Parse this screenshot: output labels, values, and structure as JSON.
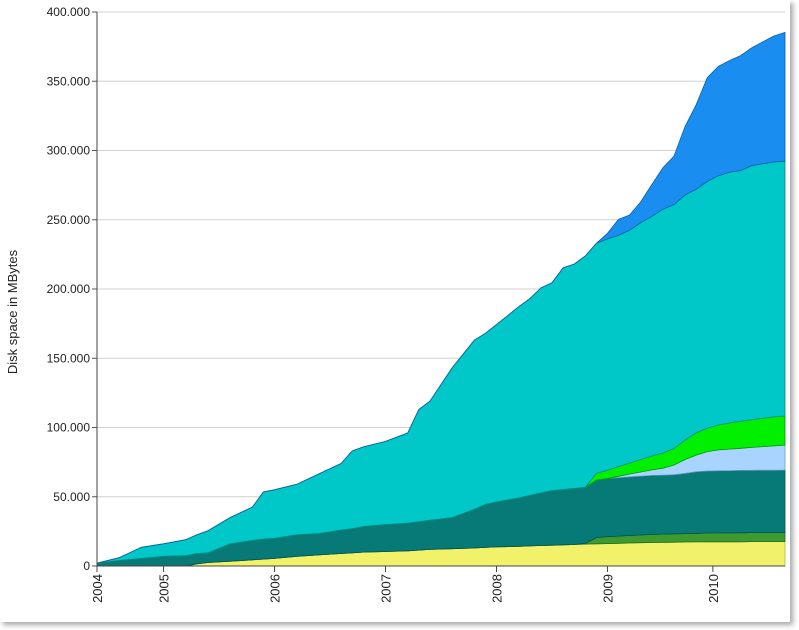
{
  "chart_data": {
    "type": "area",
    "stacked": true,
    "title": "",
    "ylabel": "Disk space in MBytes",
    "xlabel": "",
    "xlim": [
      2004.0,
      2010.2
    ],
    "ylim": [
      0,
      400000
    ],
    "grid": "horizontal",
    "y_ticks": [
      {
        "value": 0,
        "label": "0"
      },
      {
        "value": 50000,
        "label": "50.000"
      },
      {
        "value": 100000,
        "label": "100.000"
      },
      {
        "value": 150000,
        "label": "150.000"
      },
      {
        "value": 200000,
        "label": "200.000"
      },
      {
        "value": 250000,
        "label": "250.000"
      },
      {
        "value": 300000,
        "label": "300.000"
      },
      {
        "value": 350000,
        "label": "350.000"
      },
      {
        "value": 400000,
        "label": "400.000"
      }
    ],
    "x_ticks": [
      {
        "value": 2004.0,
        "label": "2004"
      },
      {
        "value": 2004.6,
        "label": "2005"
      },
      {
        "value": 2005.6,
        "label": "2006"
      },
      {
        "value": 2006.6,
        "label": "2007"
      },
      {
        "value": 2007.6,
        "label": "2008"
      },
      {
        "value": 2008.6,
        "label": "2009"
      },
      {
        "value": 2009.55,
        "label": "2010"
      }
    ],
    "x": [
      2004.0,
      2004.2,
      2004.4,
      2004.6,
      2004.8,
      2004.9,
      2005.0,
      2005.2,
      2005.4,
      2005.5,
      2005.6,
      2005.8,
      2006.0,
      2006.2,
      2006.3,
      2006.4,
      2006.6,
      2006.8,
      2006.9,
      2007.0,
      2007.2,
      2007.4,
      2007.5,
      2007.6,
      2007.8,
      2007.9,
      2008.0,
      2008.1,
      2008.2,
      2008.3,
      2008.4,
      2008.5,
      2008.6,
      2008.7,
      2008.8,
      2008.9,
      2009.0,
      2009.1,
      2009.2,
      2009.3,
      2009.4,
      2009.5,
      2009.6,
      2009.7,
      2009.8,
      2009.9,
      2010.0,
      2010.1,
      2010.2
    ],
    "series": [
      {
        "color": "#f2f26a",
        "stroke": "#b8b83a",
        "values": [
          0,
          0,
          0,
          0,
          0,
          1500,
          2500,
          3500,
          4500,
          5000,
          5500,
          7000,
          8000,
          9000,
          9500,
          10000,
          10500,
          11000,
          11500,
          12000,
          12500,
          13000,
          13500,
          13800,
          14200,
          14500,
          14800,
          15000,
          15200,
          15500,
          15800,
          16000,
          16200,
          16400,
          16600,
          16800,
          17000,
          17100,
          17200,
          17300,
          17400,
          17500,
          17500,
          17500,
          17500,
          17600,
          17600,
          17600,
          17600
        ]
      },
      {
        "color": "#3c9a30",
        "stroke": "#256b1e",
        "values": [
          0,
          0,
          0,
          0,
          0,
          0,
          0,
          0,
          0,
          0,
          0,
          0,
          0,
          0,
          0,
          0,
          0,
          0,
          0,
          0,
          0,
          0,
          0,
          0,
          0,
          0,
          0,
          0,
          0,
          0,
          500,
          4500,
          5000,
          5200,
          5400,
          5600,
          5800,
          5900,
          6000,
          6100,
          6200,
          6300,
          6400,
          6400,
          6500,
          6500,
          6500,
          6500,
          6500
        ]
      },
      {
        "color": "#077a78",
        "stroke": "#04504f",
        "values": [
          2000,
          4000,
          5500,
          7000,
          7500,
          7500,
          7000,
          12500,
          14000,
          14500,
          14500,
          15500,
          15500,
          17000,
          17500,
          18500,
          19500,
          20000,
          20500,
          21000,
          22500,
          28000,
          31000,
          32500,
          35000,
          36500,
          38000,
          39500,
          40000,
          40500,
          40500,
          41500,
          42000,
          42200,
          42400,
          42500,
          42600,
          42600,
          42700,
          43500,
          44500,
          44800,
          44900,
          45000,
          45000,
          45000,
          45100,
          45100,
          45200
        ]
      },
      {
        "color": "#a8d4ff",
        "stroke": "#6a9ec8",
        "values": [
          0,
          0,
          0,
          0,
          0,
          0,
          0,
          0,
          0,
          0,
          0,
          0,
          0,
          0,
          0,
          0,
          0,
          0,
          0,
          0,
          0,
          0,
          0,
          0,
          0,
          0,
          0,
          0,
          0,
          0,
          0,
          0,
          0,
          1000,
          2000,
          3000,
          4000,
          5000,
          7000,
          10000,
          12000,
          14000,
          15000,
          15500,
          16000,
          16500,
          17000,
          17500,
          18000
        ]
      },
      {
        "color": "#00f000",
        "stroke": "#009a00",
        "values": [
          0,
          0,
          0,
          0,
          0,
          0,
          0,
          0,
          0,
          0,
          0,
          0,
          0,
          0,
          0,
          0,
          0,
          0,
          0,
          0,
          0,
          0,
          0,
          0,
          0,
          0,
          0,
          0,
          0,
          0,
          0,
          5000,
          6000,
          7000,
          8000,
          9000,
          10000,
          11000,
          12000,
          14000,
          16000,
          17000,
          18000,
          19000,
          19500,
          20000,
          20500,
          21000,
          21000
        ]
      },
      {
        "color": "#00c8c8",
        "stroke": "#008888",
        "values": [
          0,
          2000,
          8000,
          9000,
          11500,
          13500,
          16000,
          19000,
          24000,
          34000,
          35000,
          36500,
          43000,
          48000,
          56000,
          57500,
          60000,
          65000,
          81000,
          86000,
          108000,
          122000,
          123500,
          128000,
          138000,
          142000,
          148000,
          150000,
          160000,
          162000,
          167000,
          166000,
          167000,
          167000,
          168000,
          171000,
          173000,
          176000,
          176000,
          177000,
          176000,
          178000,
          180000,
          181000,
          181000,
          183500,
          183800,
          184000,
          184000
        ]
      },
      {
        "color": "#1a8ef0",
        "stroke": "#0b5fa8",
        "values": [
          0,
          0,
          0,
          0,
          0,
          0,
          0,
          0,
          0,
          0,
          0,
          0,
          0,
          0,
          0,
          0,
          0,
          0,
          0,
          0,
          0,
          0,
          0,
          0,
          0,
          0,
          0,
          0,
          0,
          0,
          0,
          0,
          4000,
          11500,
          11000,
          15000,
          23000,
          30000,
          35000,
          49500,
          61000,
          75000,
          79000,
          80500,
          83000,
          85000,
          88000,
          91000,
          93000
        ]
      }
    ]
  }
}
